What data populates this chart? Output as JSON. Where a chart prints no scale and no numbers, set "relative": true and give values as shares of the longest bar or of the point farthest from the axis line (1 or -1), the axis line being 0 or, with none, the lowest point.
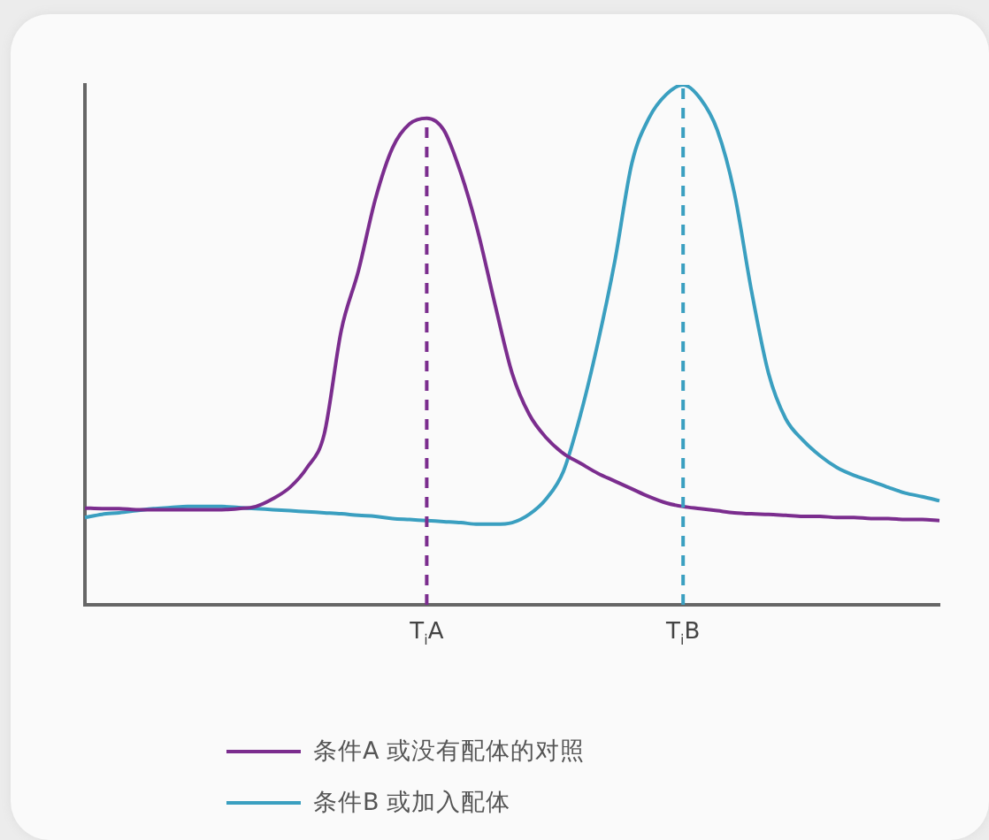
{
  "chart_data": {
    "type": "line",
    "relative": true,
    "categories": [
      null,
      null,
      null,
      null,
      null,
      null,
      null,
      null,
      null,
      null,
      null,
      null,
      null,
      null,
      null,
      null,
      null,
      null,
      null,
      null,
      "T$_{i}$A",
      null,
      null,
      null,
      null,
      null,
      null,
      null,
      null,
      null,
      null,
      null,
      null,
      null,
      null,
      "T$_{i}$B",
      null,
      null,
      null,
      null,
      null,
      null,
      null,
      null,
      null,
      null,
      null,
      null,
      null,
      null,
      null
    ],
    "series": [
      {
        "name": "条件A 或没有配体的对照",
        "color": "#7b2d8e",
        "values": [
          0.186,
          0.185,
          0.185,
          0.183,
          0.183,
          0.183,
          0.183,
          0.183,
          0.183,
          0.185,
          0.189,
          0.204,
          0.226,
          0.264,
          0.328,
          0.528,
          0.642,
          0.781,
          0.879,
          0.925,
          0.936,
          0.913,
          0.83,
          0.717,
          0.577,
          0.445,
          0.366,
          0.321,
          0.291,
          0.272,
          0.253,
          0.238,
          0.223,
          0.208,
          0.196,
          0.189,
          0.185,
          0.181,
          0.177,
          0.175,
          0.174,
          0.172,
          0.17,
          0.17,
          0.168,
          0.168,
          0.166,
          0.166,
          0.164,
          0.164,
          0.162
        ]
      },
      {
        "name": "条件B 或加入配体",
        "color": "#3a9fc0",
        "values": [
          0.168,
          0.174,
          0.177,
          0.181,
          0.185,
          0.187,
          0.189,
          0.189,
          0.189,
          0.187,
          0.185,
          0.183,
          0.181,
          0.179,
          0.177,
          0.175,
          0.172,
          0.17,
          0.166,
          0.164,
          0.162,
          0.16,
          0.158,
          0.155,
          0.155,
          0.158,
          0.174,
          0.204,
          0.257,
          0.366,
          0.502,
          0.66,
          0.849,
          0.936,
          0.981,
          1,
          0.974,
          0.913,
          0.792,
          0.604,
          0.445,
          0.358,
          0.317,
          0.287,
          0.264,
          0.249,
          0.238,
          0.226,
          0.215,
          0.208,
          0.2
        ]
      }
    ],
    "ref_lines": [
      {
        "axis": "x",
        "value": "T$_{i}$A",
        "color": "#7b2d8e",
        "line_style": "dashed"
      },
      {
        "axis": "x",
        "value": "T$_{i}$B",
        "color": "#3a9fc0",
        "line_style": "dashed"
      }
    ],
    "legend": "bottom",
    "grid": false,
    "marker": "none",
    "line_style": "solid"
  }
}
